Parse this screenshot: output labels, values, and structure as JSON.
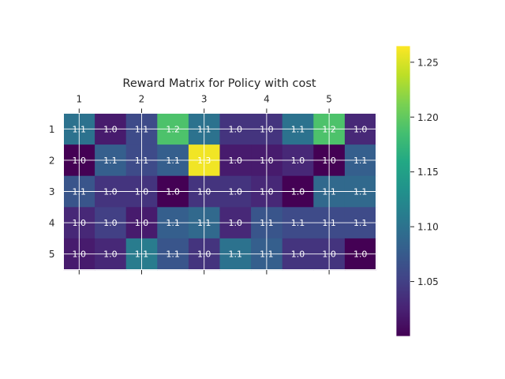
{
  "chart_data": {
    "type": "heatmap",
    "title": "Reward Matrix for Policy with cost",
    "colormap": "viridis",
    "rows": 5,
    "cols": 10,
    "x_tick_labels": [
      "1",
      "2",
      "3",
      "4",
      "5"
    ],
    "y_tick_labels": [
      "1",
      "2",
      "3",
      "4",
      "5"
    ],
    "values": [
      [
        1.1,
        1.02,
        1.06,
        1.19,
        1.1,
        1.04,
        1.04,
        1.1,
        1.19,
        1.03
      ],
      [
        1.0,
        1.08,
        1.06,
        1.08,
        1.26,
        1.02,
        1.02,
        1.03,
        1.0,
        1.08
      ],
      [
        1.07,
        1.04,
        1.04,
        1.0,
        1.04,
        1.04,
        1.03,
        1.0,
        1.09,
        1.09
      ],
      [
        1.03,
        1.05,
        1.02,
        1.08,
        1.09,
        1.03,
        1.07,
        1.06,
        1.06,
        1.06
      ],
      [
        1.02,
        1.03,
        1.11,
        1.07,
        1.04,
        1.1,
        1.08,
        1.04,
        1.04,
        1.0
      ]
    ],
    "cell_labels": [
      [
        "1.1",
        "1.0",
        "1.1",
        "1.2",
        "1.1",
        "1.0",
        "1.0",
        "1.1",
        "1.2",
        "1.0"
      ],
      [
        "1.0",
        "1.1",
        "1.1",
        "1.1",
        "1.3",
        "1.0",
        "1.0",
        "1.0",
        "1.0",
        "1.1"
      ],
      [
        "1.1",
        "1.0",
        "1.0",
        "1.0",
        "1.0",
        "1.0",
        "1.0",
        "1.0",
        "1.1",
        "1.1"
      ],
      [
        "1.0",
        "1.0",
        "1.0",
        "1.1",
        "1.1",
        "1.0",
        "1.1",
        "1.1",
        "1.1",
        "1.1"
      ],
      [
        "1.0",
        "1.0",
        "1.1",
        "1.1",
        "1.0",
        "1.1",
        "1.1",
        "1.0",
        "1.0",
        "1.0"
      ]
    ],
    "colorbar": {
      "vmin": 1.0,
      "vmax": 1.265,
      "ticks": [
        1.05,
        1.1,
        1.15,
        1.2,
        1.25
      ],
      "tick_labels": [
        "1.05",
        "1.10",
        "1.15",
        "1.20",
        "1.25"
      ]
    },
    "grid": true,
    "x_axis_position": "top"
  }
}
